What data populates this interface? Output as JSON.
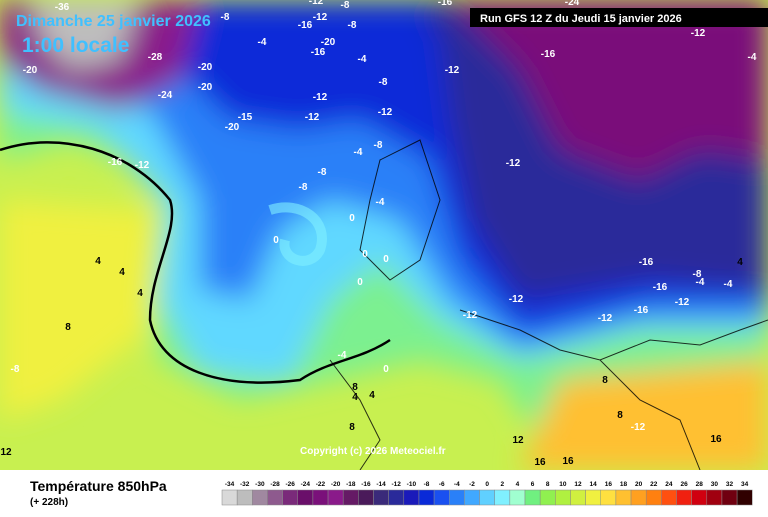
{
  "header": {
    "date": "Dimanche 25 janvier 2026",
    "time": "1:00 locale",
    "run": "Run GFS 12 Z du Jeudi 15 janvier 2026"
  },
  "footer": {
    "title": "Température 850hPa",
    "lead": "(+ 228h)",
    "copyright": "Copyright (c) 2026 Meteociel.fr"
  },
  "contour_labels": [
    -36,
    -8,
    -12,
    -8,
    -16,
    -24,
    -12,
    -4,
    -16,
    -20,
    -16,
    -28,
    -20,
    -12,
    -8,
    -20,
    -24,
    -20,
    -15,
    -20,
    -12,
    -12,
    -16,
    -12,
    -4,
    -4,
    -8,
    -12,
    -8,
    -8,
    -4,
    -8,
    -12,
    -16,
    0,
    0,
    -4,
    0,
    0,
    0,
    4,
    4,
    4,
    8,
    -8,
    0,
    -4,
    8,
    8,
    8,
    12,
    16,
    16,
    16,
    -12,
    -12,
    -12,
    -12,
    -16,
    -16,
    -12,
    -16,
    -8,
    -4,
    -4,
    4,
    4,
    8,
    12,
    -12,
    4
  ],
  "colorbar": {
    "ticks": [
      -34,
      -32,
      -30,
      -28,
      -26,
      -24,
      -22,
      -20,
      -18,
      -16,
      -14,
      -12,
      -10,
      -8,
      -6,
      -4,
      -2,
      0,
      2,
      4,
      6,
      8,
      10,
      12,
      14,
      16,
      18,
      20,
      22,
      24,
      26,
      28,
      30,
      32,
      34
    ],
    "colors": [
      "#d9d9d9",
      "#bdbdbd",
      "#a088a0",
      "#8e5a8e",
      "#7a2a7a",
      "#6a0f6a",
      "#7a107a",
      "#8a1a8a",
      "#651a65",
      "#4a1a5a",
      "#3a2a7a",
      "#2a2a9a",
      "#1a1aba",
      "#0a2ad8",
      "#1a50f0",
      "#2a80f8",
      "#40a8ff",
      "#60d0ff",
      "#80f0ff",
      "#a0ffd0",
      "#70f080",
      "#90f050",
      "#b0f040",
      "#d0f040",
      "#f0f040",
      "#ffe040",
      "#ffc030",
      "#ffa020",
      "#ff8010",
      "#ff5010",
      "#f02010",
      "#d00010",
      "#a00010",
      "#700010",
      "#300000"
    ]
  }
}
